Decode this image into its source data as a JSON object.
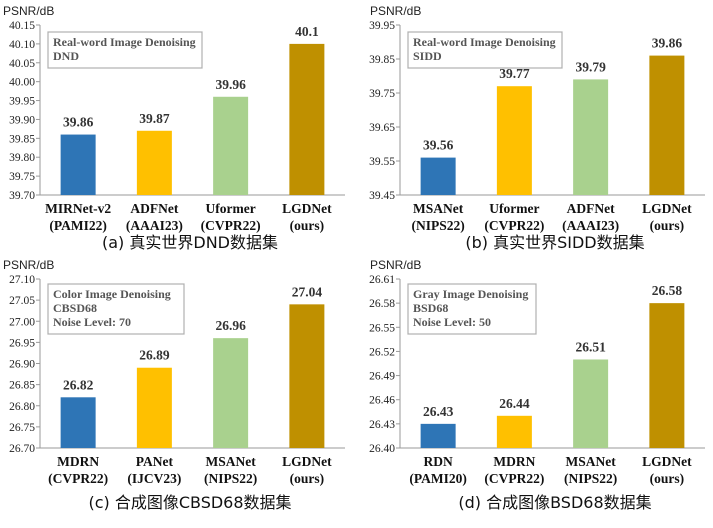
{
  "chart_data": [
    {
      "type": "bar",
      "ylabel": "PSNR/dB",
      "ylim": [
        39.7,
        40.15
      ],
      "yticks": [
        "39.70",
        "39.75",
        "39.80",
        "39.85",
        "39.90",
        "39.95",
        "40.00",
        "40.05",
        "40.10",
        "40.15"
      ],
      "categories": [
        [
          "MIRNet-v2",
          "(PAMI22)"
        ],
        [
          "ADFNet",
          "(AAAI23)"
        ],
        [
          "Uformer",
          "(CVPR22)"
        ],
        [
          "LGDNet",
          "(ours)"
        ]
      ],
      "values": [
        39.86,
        39.87,
        39.96,
        40.1
      ],
      "value_labels": [
        "39.86",
        "39.87",
        "39.96",
        "40.1"
      ],
      "colors": [
        "#2e75b6",
        "#ffc000",
        "#a9d18e",
        "#bf9000"
      ],
      "annotation": [
        "Real-word Image Denoising",
        "DND"
      ],
      "caption": "(a) 真实世界DND数据集",
      "grid": false
    },
    {
      "type": "bar",
      "ylabel": "PSNR/dB",
      "ylim": [
        39.45,
        39.95
      ],
      "yticks": [
        "39.45",
        "39.55",
        "39.65",
        "39.75",
        "39.85",
        "39.95"
      ],
      "categories": [
        [
          "MSANet",
          "(NIPS22)"
        ],
        [
          "Uformer",
          "(CVPR22)"
        ],
        [
          "ADFNet",
          "(AAAI23)"
        ],
        [
          "LGDNet",
          "(ours)"
        ]
      ],
      "values": [
        39.56,
        39.77,
        39.79,
        39.86
      ],
      "value_labels": [
        "39.56",
        "39.77",
        "39.79",
        "39.86"
      ],
      "colors": [
        "#2e75b6",
        "#ffc000",
        "#a9d18e",
        "#bf9000"
      ],
      "annotation": [
        "Real-word Image Denoising",
        "SIDD"
      ],
      "caption": "(b) 真实世界SIDD数据集",
      "grid": false
    },
    {
      "type": "bar",
      "ylabel": "PSNR/dB",
      "ylim": [
        26.7,
        27.1
      ],
      "yticks": [
        "26.70",
        "26.75",
        "26.80",
        "26.85",
        "26.90",
        "26.95",
        "27.00",
        "27.05",
        "27.10"
      ],
      "categories": [
        [
          "MDRN",
          "(CVPR22)"
        ],
        [
          "PANet",
          "(IJCV23)"
        ],
        [
          "MSANet",
          "(NIPS22)"
        ],
        [
          "LGDNet",
          "(ours)"
        ]
      ],
      "values": [
        26.82,
        26.89,
        26.96,
        27.04
      ],
      "value_labels": [
        "26.82",
        "26.89",
        "26.96",
        "27.04"
      ],
      "colors": [
        "#2e75b6",
        "#ffc000",
        "#a9d18e",
        "#bf9000"
      ],
      "annotation": [
        "Color Image Denoising",
        "CBSD68",
        "Noise Level:  70"
      ],
      "caption": "(c) 合成图像CBSD68数据集",
      "grid": false
    },
    {
      "type": "bar",
      "ylabel": "PSNR/dB",
      "ylim": [
        26.4,
        26.61
      ],
      "yticks": [
        "26.40",
        "26.43",
        "26.46",
        "26.49",
        "26.52",
        "26.55",
        "26.58",
        "26.61"
      ],
      "categories": [
        [
          "RDN",
          "(PAMI20)"
        ],
        [
          "MDRN",
          "(CVPR22)"
        ],
        [
          "MSANet",
          "(NIPS22)"
        ],
        [
          "LGDNet",
          "(ours)"
        ]
      ],
      "values": [
        26.43,
        26.44,
        26.51,
        26.58
      ],
      "value_labels": [
        "26.43",
        "26.44",
        "26.51",
        "26.58"
      ],
      "colors": [
        "#2e75b6",
        "#ffc000",
        "#a9d18e",
        "#bf9000"
      ],
      "annotation": [
        "Gray Image Denoising",
        "BSD68",
        "Noise Level:  50"
      ],
      "caption": "(d) 合成图像BSD68数据集",
      "grid": false
    }
  ]
}
